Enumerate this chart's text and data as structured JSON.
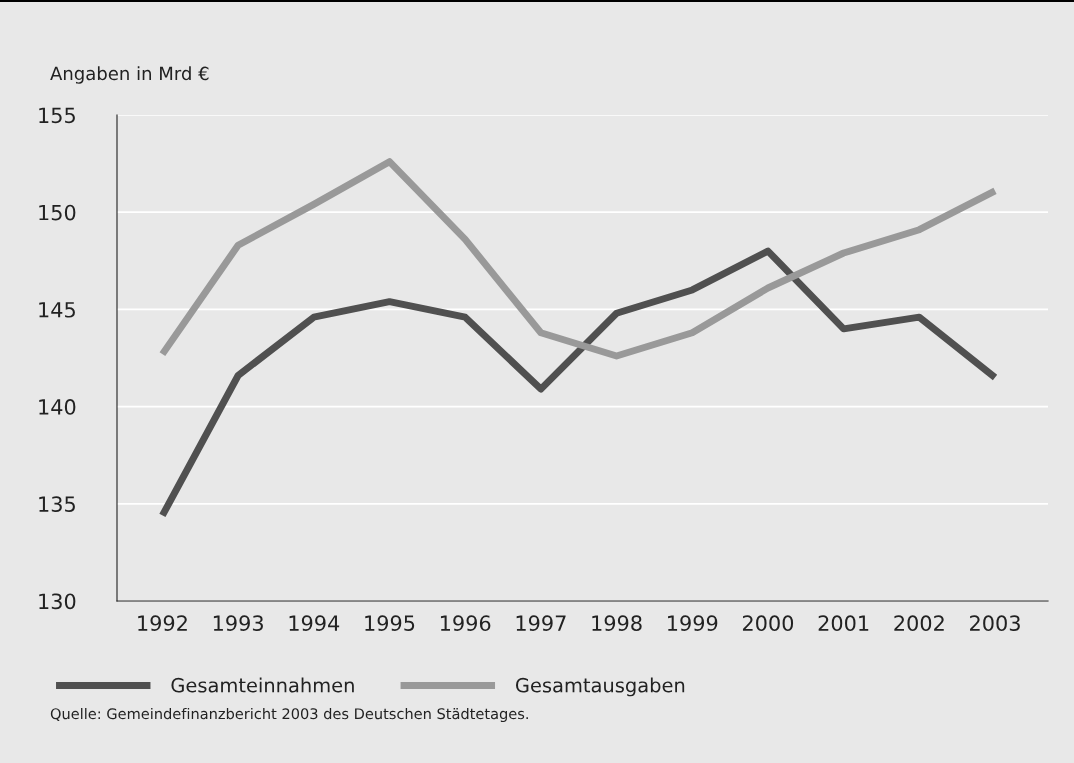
{
  "chart_data": {
    "type": "line",
    "ylabel": "Angaben in Mrd €",
    "categories": [
      "1992",
      "1993",
      "1994",
      "1995",
      "1996",
      "1997",
      "1998",
      "1999",
      "2000",
      "2001",
      "2002",
      "2003"
    ],
    "series": [
      {
        "name": "Gesamteinnahmen",
        "color": "#505050",
        "values": [
          134.4,
          141.6,
          144.6,
          145.4,
          144.6,
          140.9,
          144.8,
          146.0,
          148.0,
          144.0,
          144.6,
          141.5
        ]
      },
      {
        "name": "Gesamtausgaben",
        "color": "#999999",
        "values": [
          142.7,
          148.3,
          150.4,
          152.6,
          148.6,
          143.8,
          142.6,
          143.8,
          146.1,
          147.9,
          149.1,
          151.1
        ]
      }
    ],
    "ylim": [
      130,
      155
    ],
    "yticks": [
      130,
      135,
      140,
      145,
      150,
      155
    ],
    "grid": "y",
    "legend": "bottom",
    "marker": "none",
    "line_style": "solid",
    "annotations": [
      "Quelle: Gemeindefinanzbericht 2003 des Deutschen Städtetages."
    ]
  }
}
